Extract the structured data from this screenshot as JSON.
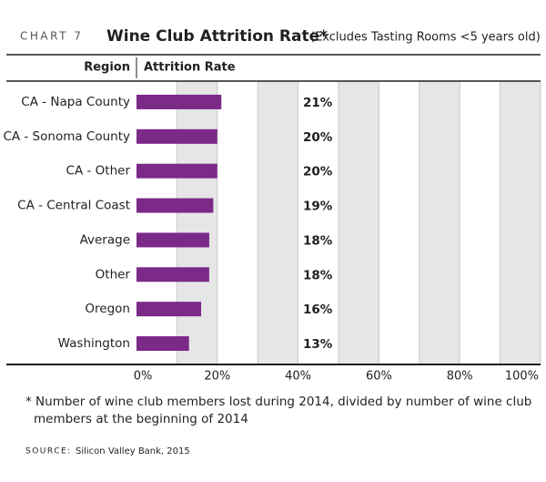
{
  "chart_data": {
    "type": "bar",
    "orientation": "horizontal",
    "chart_label": "CHART 7",
    "title": "Wine Club Attrition Rate*",
    "subtitle": "(Excludes Tasting Rooms <5 years old)",
    "category_header": "Region",
    "value_header": "Attrition Rate",
    "categories": [
      "CA - Napa County",
      "CA - Sonoma County",
      "CA - Other",
      "CA - Central Coast",
      "Average",
      "Other",
      "Oregon",
      "Washington"
    ],
    "values": [
      21,
      20,
      20,
      19,
      18,
      18,
      16,
      13
    ],
    "value_labels": [
      "21%",
      "20%",
      "20%",
      "19%",
      "18%",
      "18%",
      "16%",
      "13%"
    ],
    "color": "#7b2a88",
    "xlim": [
      0,
      100
    ],
    "xticks": [
      {
        "value": 0,
        "label": "0%"
      },
      {
        "value": 20,
        "label": "20%"
      },
      {
        "value": 40,
        "label": "40%"
      },
      {
        "value": 60,
        "label": "60%"
      },
      {
        "value": 80,
        "label": "80%"
      },
      {
        "value": 100,
        "label": "100%"
      }
    ],
    "grid": true,
    "footnote": [
      "* Number of wine club members lost during 2014, divided by number of wine club",
      "members at the beginning of 2014"
    ],
    "source_label": "SOURCE:",
    "source": "Silicon Valley Bank, 2015"
  }
}
